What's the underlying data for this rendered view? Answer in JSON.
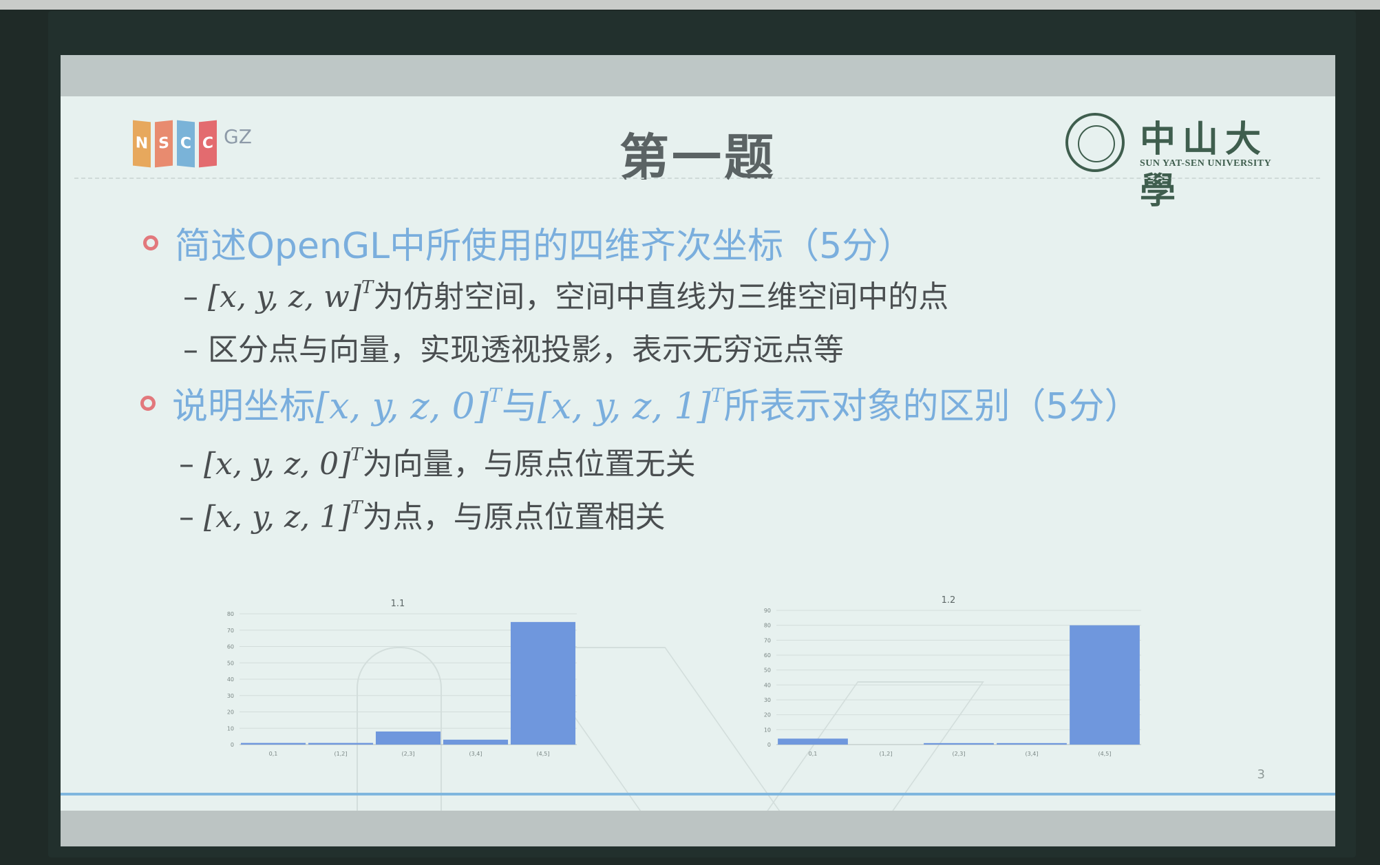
{
  "slide": {
    "title": "第一题",
    "logo_left": {
      "letters": [
        "N",
        "S",
        "C",
        "C"
      ],
      "suffix": "GZ",
      "colors": [
        "#e7a85d",
        "#e88b6f",
        "#7ab3d8",
        "#e36b6f"
      ]
    },
    "logo_right": {
      "name_cn": "中山大學",
      "name_en": "SUN YAT-SEN UNIVERSITY"
    },
    "bullets": [
      {
        "text": "简述OpenGL中所使用的四维齐次坐标（5分）",
        "subs": [
          {
            "dash": "–",
            "math": "[x, y, z, w]",
            "sup": "T",
            "text": "为仿射空间，空间中直线为三维空间中的点"
          },
          {
            "dash": "–",
            "math": "",
            "sup": "",
            "text": "区分点与向量，实现透视投影，表示无穷远点等"
          }
        ]
      },
      {
        "text_before": "说明坐标",
        "math1": "[x, y, z, 0]",
        "sup1": "T",
        "text_mid": "与",
        "math2": "[x, y, z, 1]",
        "sup2": "T",
        "text_after": "所表示对象的区别（5分）",
        "subs": [
          {
            "dash": "–",
            "math": "[x, y, z, 0]",
            "sup": "T",
            "text": "为向量，与原点位置无关"
          },
          {
            "dash": "–",
            "math": "[x, y, z, 1]",
            "sup": "T",
            "text": "为点，与原点位置相关"
          }
        ]
      }
    ],
    "page_number": "3",
    "colors": {
      "bullet_blue": "#7aaedd",
      "bullet_dot": "#e2787c",
      "bar": "#6f97dd",
      "rule": "#7fb6de"
    }
  },
  "chart_data": [
    {
      "type": "bar",
      "title": "1.1",
      "categories": [
        "0,1",
        "(1,2]",
        "(2,3]",
        "(3,4]",
        "(4,5]"
      ],
      "values": [
        1,
        1,
        8,
        3,
        75
      ],
      "ylim": [
        0,
        80
      ],
      "yticks": [
        0,
        10,
        20,
        30,
        40,
        50,
        60,
        70,
        80
      ],
      "grid": true
    },
    {
      "type": "bar",
      "title": "1.2",
      "categories": [
        "0,1",
        "(1,2]",
        "(2,3]",
        "(3,4]",
        "(4,5]"
      ],
      "values": [
        4,
        0,
        1,
        1,
        80
      ],
      "ylim": [
        0,
        90
      ],
      "yticks": [
        0,
        10,
        20,
        30,
        40,
        50,
        60,
        70,
        80,
        90
      ],
      "grid": true
    }
  ]
}
